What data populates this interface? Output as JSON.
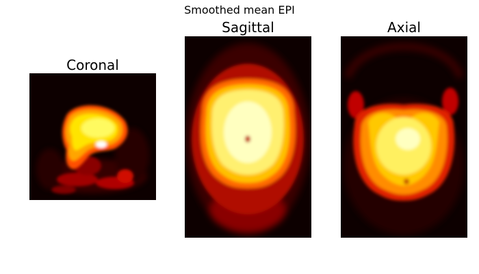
{
  "figure": {
    "title": "Smoothed mean EPI",
    "colormap": "hot",
    "background": "#ffffff"
  },
  "panels": [
    {
      "label": "Coronal"
    },
    {
      "label": "Sagittal"
    },
    {
      "label": "Axial"
    }
  ]
}
